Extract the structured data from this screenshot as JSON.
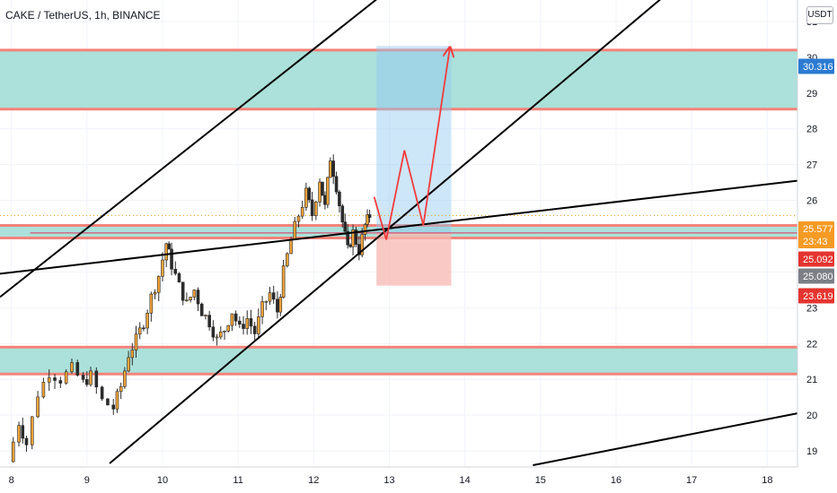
{
  "header": {
    "title": "CAKE / TetherUS, 1h, BINANCE",
    "currency_button": "USDT"
  },
  "colors": {
    "bull_candle": "#f0a339",
    "bear_candle": "#2b2b2b",
    "zone_fill": "#a6dfd8",
    "zone_border": "#f3837a",
    "trendline": "#000000",
    "projection": "#f23c3c",
    "target_box": "#90c8f0",
    "stop_box": "#f7b8b2",
    "label_blue": "#2b7bd1",
    "label_orange": "#f59a23",
    "label_red": "#e5342f",
    "label_gray": "#7c7f86"
  },
  "chart_data": {
    "type": "candlestick",
    "symbol": "CAKE / TetherUS",
    "interval": "1h",
    "exchange": "BINANCE",
    "x_tick_labels": [
      "8",
      "9",
      "10",
      "11",
      "12",
      "13",
      "14",
      "15",
      "16",
      "17",
      "18"
    ],
    "y_tick_labels": [
      "19",
      "20",
      "21",
      "22",
      "23",
      "24",
      "25",
      "26",
      "27",
      "28",
      "29",
      "30",
      "31"
    ],
    "x_range_days": [
      7.85,
      18.4
    ],
    "y_range": [
      18.55,
      31.6
    ],
    "candles_daily_path": [
      [
        7.95,
        18.7
      ],
      [
        8.1,
        19.8
      ],
      [
        8.2,
        19.2
      ],
      [
        8.35,
        20.6
      ],
      [
        8.5,
        21.2
      ],
      [
        8.65,
        21.0
      ],
      [
        8.8,
        21.3
      ],
      [
        8.95,
        20.9
      ],
      [
        9.05,
        21.1
      ],
      [
        9.2,
        20.4
      ],
      [
        9.35,
        20.2
      ],
      [
        9.45,
        20.8
      ],
      [
        9.55,
        21.7
      ],
      [
        9.65,
        22.1
      ],
      [
        9.75,
        22.6
      ],
      [
        9.85,
        23.3
      ],
      [
        9.95,
        23.9
      ],
      [
        10.05,
        24.8
      ],
      [
        10.12,
        24.2
      ],
      [
        10.22,
        23.6
      ],
      [
        10.32,
        23.1
      ],
      [
        10.42,
        23.5
      ],
      [
        10.52,
        22.9
      ],
      [
        10.62,
        22.6
      ],
      [
        10.72,
        22.1
      ],
      [
        10.82,
        22.4
      ],
      [
        10.92,
        22.9
      ],
      [
        11.02,
        22.4
      ],
      [
        11.12,
        22.7
      ],
      [
        11.22,
        22.3
      ],
      [
        11.32,
        23.0
      ],
      [
        11.42,
        23.4
      ],
      [
        11.52,
        22.9
      ],
      [
        11.6,
        24.0
      ],
      [
        11.7,
        24.9
      ],
      [
        11.8,
        25.6
      ],
      [
        11.9,
        26.2
      ],
      [
        11.98,
        25.6
      ],
      [
        12.08,
        26.6
      ],
      [
        12.15,
        25.8
      ],
      [
        12.22,
        27.2
      ],
      [
        12.3,
        26.4
      ],
      [
        12.38,
        25.4
      ],
      [
        12.45,
        24.6
      ],
      [
        12.52,
        25.1
      ],
      [
        12.6,
        24.6
      ],
      [
        12.68,
        25.3
      ],
      [
        12.74,
        25.58
      ]
    ],
    "horizontal_levels": [
      25.09
    ],
    "zones": [
      {
        "from": 28.55,
        "to": 30.2
      },
      {
        "from": 24.95,
        "to": 25.3
      },
      {
        "from": 21.15,
        "to": 21.9
      }
    ],
    "trendlines": [
      {
        "from": [
          7.85,
          23.95
        ],
        "to": [
          18.4,
          26.55
        ]
      },
      {
        "from": [
          7.85,
          23.3
        ],
        "to": [
          13.0,
          31.9
        ]
      },
      {
        "from": [
          9.3,
          18.65
        ],
        "to": [
          16.8,
          32.0
        ]
      },
      {
        "from": [
          14.9,
          18.6
        ],
        "to": [
          18.4,
          20.05
        ]
      }
    ],
    "projection_path": [
      [
        12.8,
        26.1
      ],
      [
        12.96,
        24.9
      ],
      [
        13.2,
        27.4
      ],
      [
        13.45,
        25.3
      ],
      [
        13.8,
        30.25
      ]
    ],
    "position_box": {
      "x_from": 12.83,
      "x_to": 13.82,
      "entry": 25.08,
      "target": 30.316,
      "stop": 23.619
    },
    "price_labels": [
      "30.316",
      "25.577",
      "23:43",
      "25.092",
      "25.080",
      "23.619"
    ]
  }
}
